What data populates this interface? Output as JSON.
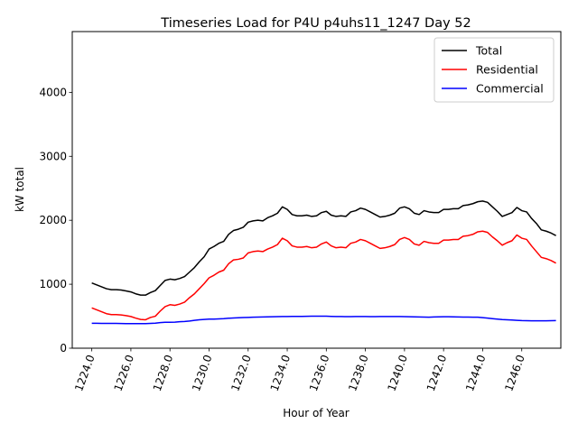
{
  "chart_data": {
    "type": "line",
    "title": "Timeseries Load for P4U p4uhs11_1247  Day 52",
    "xlabel": "Hour of Year",
    "ylabel": "kW total",
    "xlim": [
      1223.0,
      1248.0
    ],
    "ylim": [
      0,
      4950
    ],
    "x_ticks": [
      1224,
      1226,
      1228,
      1230,
      1232,
      1234,
      1236,
      1238,
      1240,
      1242,
      1244,
      1246
    ],
    "x_tick_labels": [
      "1224.0",
      "1226.0",
      "1228.0",
      "1230.0",
      "1232.0",
      "1234.0",
      "1236.0",
      "1238.0",
      "1240.0",
      "1242.0",
      "1244.0",
      "1246.0"
    ],
    "y_ticks": [
      0,
      1000,
      2000,
      3000,
      4000
    ],
    "y_tick_labels": [
      "0",
      "1000",
      "2000",
      "3000",
      "4000"
    ],
    "grid": false,
    "legend_position": "top-right",
    "x": [
      1224.0,
      1224.25,
      1224.5,
      1224.75,
      1225.0,
      1225.25,
      1225.5,
      1225.75,
      1226.0,
      1226.25,
      1226.5,
      1226.75,
      1227.0,
      1227.25,
      1227.5,
      1227.75,
      1228.0,
      1228.25,
      1228.5,
      1228.75,
      1229.0,
      1229.25,
      1229.5,
      1229.75,
      1230.0,
      1230.25,
      1230.5,
      1230.75,
      1231.0,
      1231.25,
      1231.5,
      1231.75,
      1232.0,
      1232.25,
      1232.5,
      1232.75,
      1233.0,
      1233.25,
      1233.5,
      1233.75,
      1234.0,
      1234.25,
      1234.5,
      1234.75,
      1235.0,
      1235.25,
      1235.5,
      1235.75,
      1236.0,
      1236.25,
      1236.5,
      1236.75,
      1237.0,
      1237.25,
      1237.5,
      1237.75,
      1238.0,
      1238.25,
      1238.5,
      1238.75,
      1239.0,
      1239.25,
      1239.5,
      1239.75,
      1240.0,
      1240.25,
      1240.5,
      1240.75,
      1241.0,
      1241.25,
      1241.5,
      1241.75,
      1242.0,
      1242.25,
      1242.5,
      1242.75,
      1243.0,
      1243.25,
      1243.5,
      1243.75,
      1244.0,
      1244.25,
      1244.5,
      1244.75,
      1245.0,
      1245.25,
      1245.5,
      1245.75,
      1246.0,
      1246.25,
      1246.5,
      1246.75,
      1247.0,
      1247.25,
      1247.5,
      1247.75
    ],
    "series": [
      {
        "name": "Total",
        "color": "#000000",
        "values": [
          1020,
          990,
          960,
          930,
          915,
          915,
          910,
          895,
          880,
          850,
          830,
          830,
          870,
          900,
          980,
          1060,
          1080,
          1070,
          1090,
          1120,
          1190,
          1260,
          1350,
          1430,
          1550,
          1590,
          1640,
          1670,
          1780,
          1840,
          1860,
          1890,
          1970,
          1990,
          2000,
          1990,
          2040,
          2070,
          2110,
          2210,
          2170,
          2090,
          2070,
          2070,
          2080,
          2060,
          2070,
          2120,
          2140,
          2080,
          2060,
          2070,
          2060,
          2130,
          2150,
          2190,
          2170,
          2130,
          2090,
          2050,
          2060,
          2080,
          2110,
          2190,
          2210,
          2180,
          2110,
          2090,
          2150,
          2130,
          2120,
          2120,
          2170,
          2170,
          2180,
          2180,
          2230,
          2240,
          2260,
          2290,
          2300,
          2280,
          2210,
          2140,
          2060,
          2090,
          2120,
          2200,
          2150,
          2130,
          2030,
          1950,
          1850,
          1830,
          1800,
          1760
        ]
      },
      {
        "name": "Residential",
        "color": "#ff0000",
        "values": [
          630,
          600,
          570,
          540,
          525,
          525,
          520,
          510,
          495,
          470,
          450,
          445,
          480,
          500,
          580,
          650,
          680,
          670,
          690,
          720,
          790,
          850,
          930,
          1010,
          1100,
          1140,
          1190,
          1220,
          1320,
          1380,
          1390,
          1410,
          1490,
          1510,
          1520,
          1510,
          1550,
          1580,
          1620,
          1720,
          1680,
          1600,
          1580,
          1580,
          1590,
          1570,
          1580,
          1630,
          1660,
          1600,
          1570,
          1580,
          1570,
          1640,
          1660,
          1700,
          1680,
          1640,
          1600,
          1560,
          1570,
          1590,
          1620,
          1700,
          1730,
          1700,
          1630,
          1610,
          1670,
          1650,
          1640,
          1640,
          1690,
          1690,
          1700,
          1700,
          1750,
          1760,
          1780,
          1820,
          1830,
          1810,
          1740,
          1680,
          1610,
          1650,
          1680,
          1770,
          1720,
          1700,
          1600,
          1510,
          1420,
          1400,
          1370,
          1330
        ]
      },
      {
        "name": "Commercial",
        "color": "#0000ff",
        "values": [
          390,
          390,
          388,
          388,
          387,
          387,
          386,
          385,
          385,
          384,
          384,
          384,
          388,
          392,
          400,
          405,
          405,
          408,
          415,
          418,
          425,
          435,
          445,
          450,
          455,
          455,
          458,
          462,
          468,
          472,
          476,
          480,
          482,
          484,
          486,
          488,
          490,
          492,
          494,
          496,
          496,
          497,
          498,
          498,
          499,
          500,
          500,
          500,
          500,
          498,
          496,
          495,
          494,
          494,
          495,
          496,
          495,
          494,
          494,
          495,
          496,
          496,
          496,
          496,
          494,
          492,
          490,
          488,
          486,
          484,
          488,
          490,
          492,
          492,
          490,
          488,
          487,
          486,
          485,
          484,
          478,
          470,
          462,
          455,
          448,
          444,
          440,
          436,
          432,
          430,
          428,
          428,
          428,
          429,
          430,
          432
        ]
      }
    ]
  }
}
